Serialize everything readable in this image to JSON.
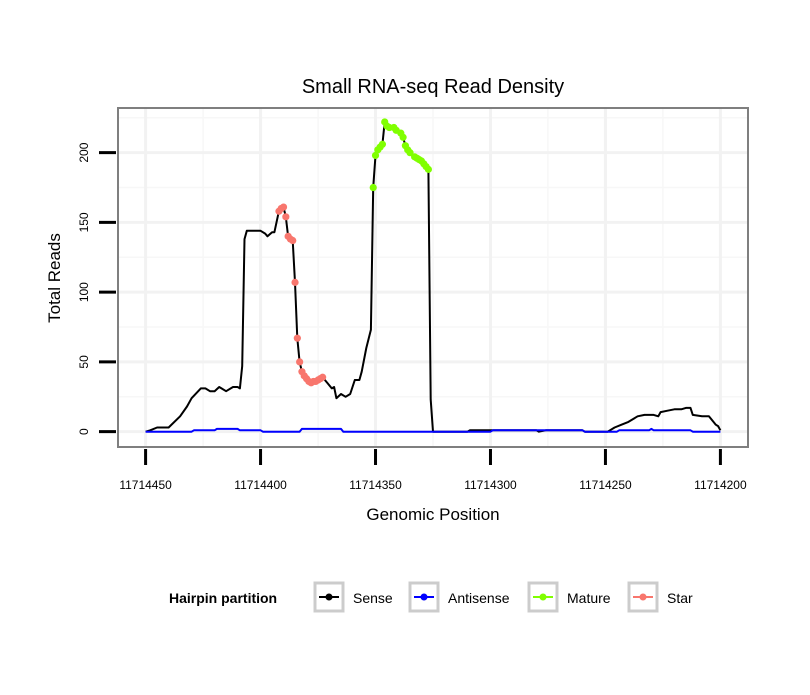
{
  "chart_data": {
    "type": "line",
    "title": "Small RNA-seq Read Density",
    "xlabel": "Genomic Position",
    "ylabel": "Total Reads",
    "xlim": [
      11714462,
      11714188
    ],
    "x_reversed": true,
    "ylim": [
      -11,
      232
    ],
    "xticks": [
      11714450,
      11714400,
      11714350,
      11714300,
      11714250,
      11714200
    ],
    "xtick_labels": [
      "11714450",
      "11714400",
      "11714350",
      "11714300",
      "11714250",
      "11714200"
    ],
    "yticks": [
      0,
      50,
      100,
      150,
      200
    ],
    "ytick_labels": [
      "0",
      "50",
      "100",
      "150",
      "200"
    ],
    "grid": true,
    "legend": {
      "title": "Hairpin partition",
      "placement": "bottom",
      "entries": [
        "Sense",
        "Antisense",
        "Mature",
        "Star"
      ]
    },
    "series": [
      {
        "name": "Sense",
        "color": "#000000",
        "kind": "line",
        "points": [
          [
            11714450,
            0
          ],
          [
            11714448,
            1
          ],
          [
            11714445,
            3
          ],
          [
            11714440,
            3
          ],
          [
            11714435,
            11
          ],
          [
            11714432,
            18
          ],
          [
            11714430,
            24
          ],
          [
            11714426,
            31
          ],
          [
            11714424,
            31
          ],
          [
            11714422,
            29
          ],
          [
            11714420,
            29
          ],
          [
            11714418,
            32
          ],
          [
            11714417,
            31
          ],
          [
            11714415,
            29
          ],
          [
            11714412,
            32
          ],
          [
            11714410,
            32
          ],
          [
            11714409,
            31
          ],
          [
            11714408,
            47
          ],
          [
            11714407,
            138
          ],
          [
            11714406,
            144
          ],
          [
            11714403,
            144
          ],
          [
            11714400,
            144
          ],
          [
            11714398,
            142
          ],
          [
            11714397,
            140
          ],
          [
            11714395,
            143
          ],
          [
            11714394,
            143
          ],
          [
            11714392,
            158
          ],
          [
            11714391,
            160
          ],
          [
            11714390,
            161
          ],
          [
            11714389,
            154
          ],
          [
            11714388,
            140
          ],
          [
            11714387,
            138
          ],
          [
            11714386,
            137
          ],
          [
            11714385,
            107
          ],
          [
            11714384,
            67
          ],
          [
            11714383,
            50
          ],
          [
            11714382,
            43
          ],
          [
            11714381,
            40
          ],
          [
            11714380,
            38
          ],
          [
            11714379,
            36
          ],
          [
            11714378,
            35
          ],
          [
            11714377,
            36
          ],
          [
            11714376,
            36
          ],
          [
            11714375,
            37
          ],
          [
            11714374,
            38
          ],
          [
            11714373,
            39
          ],
          [
            11714371,
            35
          ],
          [
            11714369,
            31
          ],
          [
            11714368,
            32
          ],
          [
            11714367,
            24
          ],
          [
            11714365,
            27
          ],
          [
            11714363,
            25
          ],
          [
            11714361,
            27
          ],
          [
            11714359,
            37
          ],
          [
            11714357,
            37
          ],
          [
            11714356,
            43
          ],
          [
            11714354,
            60
          ],
          [
            11714352,
            73
          ],
          [
            11714351,
            175
          ],
          [
            11714350,
            198
          ],
          [
            11714349,
            202
          ],
          [
            11714348,
            204
          ],
          [
            11714347,
            206
          ],
          [
            11714346,
            222
          ],
          [
            11714345,
            219
          ],
          [
            11714344,
            218
          ],
          [
            11714342,
            218
          ],
          [
            11714341,
            216
          ],
          [
            11714339,
            214
          ],
          [
            11714338,
            211
          ],
          [
            11714337,
            205
          ],
          [
            11714336,
            202
          ],
          [
            11714335,
            200
          ],
          [
            11714333,
            197
          ],
          [
            11714332,
            196
          ],
          [
            11714331,
            195
          ],
          [
            11714330,
            194
          ],
          [
            11714329,
            192
          ],
          [
            11714328,
            190
          ],
          [
            11714327,
            188
          ],
          [
            11714326,
            23
          ],
          [
            11714325,
            0
          ],
          [
            11714310,
            0
          ],
          [
            11714309,
            1
          ],
          [
            11714280,
            1
          ],
          [
            11714279,
            0
          ],
          [
            11714276,
            1
          ],
          [
            11714260,
            1
          ],
          [
            11714259,
            0
          ],
          [
            11714249,
            0
          ],
          [
            11714246,
            3
          ],
          [
            11714243,
            5
          ],
          [
            11714240,
            7
          ],
          [
            11714236,
            11
          ],
          [
            11714233,
            12
          ],
          [
            11714229,
            12
          ],
          [
            11714227,
            11
          ],
          [
            11714226,
            14
          ],
          [
            11714223,
            15
          ],
          [
            11714220,
            16
          ],
          [
            11714217,
            16
          ],
          [
            11714215,
            17
          ],
          [
            11714213,
            17
          ],
          [
            11714212,
            12
          ],
          [
            11714208,
            11
          ],
          [
            11714205,
            11
          ],
          [
            11714203,
            7
          ],
          [
            11714202,
            5
          ],
          [
            11714201,
            4
          ],
          [
            11714200,
            1
          ]
        ]
      },
      {
        "name": "Antisense",
        "color": "#0000ff",
        "kind": "line",
        "points": [
          [
            11714450,
            0
          ],
          [
            11714430,
            0
          ],
          [
            11714429,
            1
          ],
          [
            11714420,
            1
          ],
          [
            11714419,
            2
          ],
          [
            11714410,
            2
          ],
          [
            11714409,
            1
          ],
          [
            11714400,
            1
          ],
          [
            11714399,
            0
          ],
          [
            11714383,
            0
          ],
          [
            11714382,
            2
          ],
          [
            11714365,
            2
          ],
          [
            11714364,
            0
          ],
          [
            11714300,
            0
          ],
          [
            11714299,
            1
          ],
          [
            11714260,
            1
          ],
          [
            11714259,
            0
          ],
          [
            11714245,
            0
          ],
          [
            11714244,
            1
          ],
          [
            11714231,
            1
          ],
          [
            11714230,
            2
          ],
          [
            11714229,
            1
          ],
          [
            11714213,
            1
          ],
          [
            11714212,
            0
          ],
          [
            11714200,
            0
          ]
        ]
      },
      {
        "name": "Mature",
        "color": "#80ff00",
        "kind": "points",
        "points": [
          [
            11714351,
            175
          ],
          [
            11714350,
            198
          ],
          [
            11714349,
            202
          ],
          [
            11714348,
            204
          ],
          [
            11714347,
            206
          ],
          [
            11714346,
            222
          ],
          [
            11714345,
            219
          ],
          [
            11714344,
            218
          ],
          [
            11714342,
            218
          ],
          [
            11714341,
            216
          ],
          [
            11714339,
            214
          ],
          [
            11714338,
            211
          ],
          [
            11714337,
            205
          ],
          [
            11714336,
            202
          ],
          [
            11714335,
            200
          ],
          [
            11714333,
            197
          ],
          [
            11714332,
            196
          ],
          [
            11714331,
            195
          ],
          [
            11714330,
            194
          ],
          [
            11714329,
            192
          ],
          [
            11714328,
            190
          ],
          [
            11714327,
            188
          ]
        ]
      },
      {
        "name": "Star",
        "color": "#f8766d",
        "kind": "points",
        "points": [
          [
            11714392,
            158
          ],
          [
            11714391,
            160
          ],
          [
            11714390,
            161
          ],
          [
            11714389,
            154
          ],
          [
            11714388,
            140
          ],
          [
            11714387,
            138
          ],
          [
            11714386,
            137
          ],
          [
            11714385,
            107
          ],
          [
            11714384,
            67
          ],
          [
            11714383,
            50
          ],
          [
            11714382,
            43
          ],
          [
            11714381,
            40
          ],
          [
            11714380,
            38
          ],
          [
            11714379,
            36
          ],
          [
            11714378,
            35
          ],
          [
            11714377,
            36
          ],
          [
            11714376,
            36
          ],
          [
            11714375,
            37
          ],
          [
            11714374,
            38
          ],
          [
            11714373,
            39
          ]
        ]
      }
    ]
  }
}
